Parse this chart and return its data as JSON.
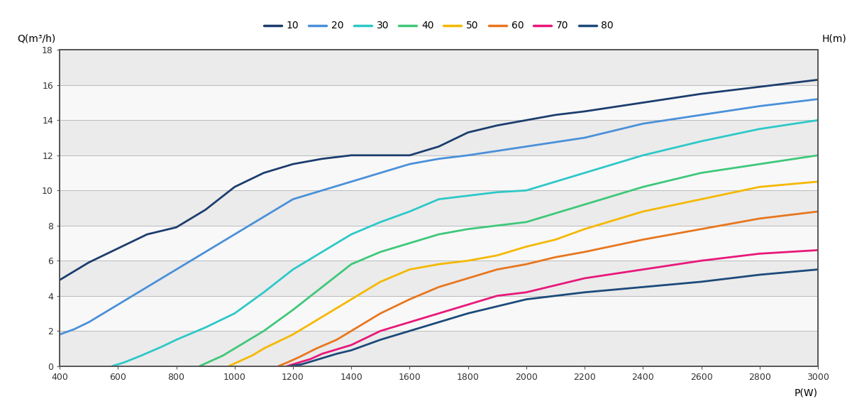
{
  "xlabel": "P(W)",
  "ylabel_left": "Q(m³/h)",
  "ylabel_right": "H(m)",
  "xlim": [
    400,
    3000
  ],
  "ylim": [
    0,
    18
  ],
  "xticks": [
    400,
    600,
    800,
    1000,
    1200,
    1400,
    1600,
    1800,
    2000,
    2200,
    2400,
    2600,
    2800,
    3000
  ],
  "yticks": [
    0,
    2,
    4,
    6,
    8,
    10,
    12,
    14,
    16,
    18
  ],
  "legend_labels": [
    "10",
    "20",
    "30",
    "40",
    "50",
    "60",
    "70",
    "80"
  ],
  "colors": {
    "10": "#1c3d6e",
    "20": "#4a90d9",
    "30": "#2ec8c8",
    "40": "#3ec87a",
    "50": "#f5b800",
    "60": "#e8761e",
    "70": "#e8187a",
    "80": "#1c4a7a"
  },
  "curves": {
    "10": {
      "power": [
        400,
        450,
        500,
        550,
        600,
        650,
        700,
        750,
        800,
        900,
        1000,
        1100,
        1200,
        1300,
        1400,
        1500,
        1600,
        1700,
        1800,
        1850,
        1900,
        2000,
        2100,
        2200,
        2400,
        2600,
        2800,
        3000
      ],
      "flow": [
        4.9,
        5.4,
        5.9,
        6.3,
        6.7,
        7.1,
        7.5,
        7.7,
        7.9,
        8.9,
        10.2,
        11.0,
        11.5,
        11.8,
        12.0,
        12.0,
        12.0,
        12.5,
        13.3,
        13.5,
        13.7,
        14.0,
        14.3,
        14.5,
        15.0,
        15.5,
        15.9,
        16.3
      ]
    },
    "20": {
      "power": [
        400,
        450,
        500,
        550,
        600,
        650,
        700,
        750,
        800,
        900,
        1000,
        1100,
        1200,
        1300,
        1400,
        1500,
        1600,
        1700,
        1800,
        2000,
        2200,
        2400,
        2600,
        2800,
        3000
      ],
      "flow": [
        1.8,
        2.1,
        2.5,
        3.0,
        3.5,
        4.0,
        4.5,
        5.0,
        5.5,
        6.5,
        7.5,
        8.5,
        9.5,
        10.0,
        10.5,
        11.0,
        11.5,
        11.8,
        12.0,
        12.5,
        13.0,
        13.8,
        14.3,
        14.8,
        15.2
      ]
    },
    "30": {
      "power": [
        580,
        620,
        680,
        750,
        800,
        900,
        1000,
        1100,
        1200,
        1300,
        1400,
        1500,
        1600,
        1700,
        1800,
        1850,
        1900,
        2000,
        2200,
        2400,
        2600,
        2800,
        3000
      ],
      "flow": [
        0.0,
        0.2,
        0.6,
        1.1,
        1.5,
        2.2,
        3.0,
        4.2,
        5.5,
        6.5,
        7.5,
        8.2,
        8.8,
        9.5,
        9.7,
        9.8,
        9.9,
        10.0,
        11.0,
        12.0,
        12.8,
        13.5,
        14.0
      ]
    },
    "40": {
      "power": [
        880,
        920,
        960,
        1000,
        1050,
        1100,
        1200,
        1300,
        1400,
        1500,
        1600,
        1700,
        1800,
        1850,
        1900,
        2000,
        2200,
        2400,
        2600,
        2800,
        3000
      ],
      "flow": [
        0.0,
        0.3,
        0.6,
        1.0,
        1.5,
        2.0,
        3.2,
        4.5,
        5.8,
        6.5,
        7.0,
        7.5,
        7.8,
        7.9,
        8.0,
        8.2,
        9.2,
        10.2,
        11.0,
        11.5,
        12.0
      ]
    },
    "50": {
      "power": [
        980,
        1020,
        1060,
        1100,
        1150,
        1200,
        1300,
        1400,
        1500,
        1600,
        1700,
        1800,
        1900,
        2000,
        2100,
        2200,
        2400,
        2600,
        2800,
        3000
      ],
      "flow": [
        0.0,
        0.3,
        0.6,
        1.0,
        1.4,
        1.8,
        2.8,
        3.8,
        4.8,
        5.5,
        5.8,
        6.0,
        6.3,
        6.8,
        7.2,
        7.8,
        8.8,
        9.5,
        10.2,
        10.5
      ]
    },
    "60": {
      "power": [
        1150,
        1180,
        1220,
        1280,
        1350,
        1400,
        1500,
        1600,
        1700,
        1800,
        1900,
        2000,
        2100,
        2200,
        2400,
        2600,
        2800,
        3000
      ],
      "flow": [
        0.0,
        0.2,
        0.5,
        1.0,
        1.5,
        2.0,
        3.0,
        3.8,
        4.5,
        5.0,
        5.5,
        5.8,
        6.2,
        6.5,
        7.2,
        7.8,
        8.4,
        8.8
      ]
    },
    "70": {
      "power": [
        1180,
        1220,
        1260,
        1300,
        1380,
        1400,
        1500,
        1600,
        1700,
        1800,
        1900,
        2000,
        2200,
        2400,
        2600,
        2800,
        3000
      ],
      "flow": [
        0.0,
        0.2,
        0.4,
        0.7,
        1.1,
        1.2,
        2.0,
        2.5,
        3.0,
        3.5,
        4.0,
        4.2,
        5.0,
        5.5,
        6.0,
        6.4,
        6.6
      ]
    },
    "80": {
      "power": [
        1190,
        1230,
        1270,
        1350,
        1400,
        1500,
        1600,
        1700,
        1800,
        1900,
        2000,
        2200,
        2400,
        2600,
        2800,
        3000
      ],
      "flow": [
        0.0,
        0.1,
        0.3,
        0.7,
        0.9,
        1.5,
        2.0,
        2.5,
        3.0,
        3.4,
        3.8,
        4.2,
        4.5,
        4.8,
        5.2,
        5.5
      ]
    }
  },
  "bg_color": "#ffffff",
  "plot_bg_color": "#ffffff",
  "grid_color": "#cccccc",
  "spine_color": "#555555"
}
